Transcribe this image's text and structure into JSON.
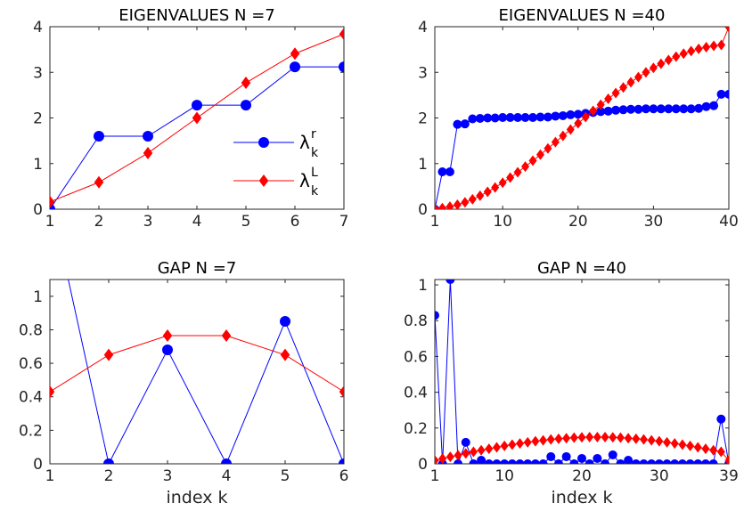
{
  "colors": {
    "lambda_r": "#0000ff",
    "lambda_L": "#ff0000",
    "axis": "#262626"
  },
  "chart_data": [
    {
      "type": "line",
      "title": "EIGENVALUES N =7",
      "xlabel": "",
      "ylabel": "",
      "xlim": [
        1,
        7
      ],
      "ylim": [
        0,
        4
      ],
      "xticks": [
        1,
        2,
        3,
        4,
        5,
        6,
        7
      ],
      "yticks": [
        0,
        1,
        2,
        3,
        4
      ],
      "grid": false,
      "legend": {
        "placement": "center-right",
        "entries": [
          {
            "base": "λ",
            "sup": "r",
            "sub": "k"
          },
          {
            "base": "λ",
            "sup": "L",
            "sub": "k"
          }
        ]
      },
      "series": [
        {
          "name": "λ^r_k",
          "color": "#0000ff",
          "marker": "circle",
          "x": [
            1,
            2,
            3,
            4,
            5,
            6,
            7
          ],
          "y": [
            0.0,
            1.6,
            1.6,
            2.28,
            2.28,
            3.12,
            3.12
          ]
        },
        {
          "name": "λ^L_k",
          "color": "#ff0000",
          "marker": "diamond",
          "x": [
            1,
            2,
            3,
            4,
            5,
            6,
            7
          ],
          "y": [
            0.16,
            0.59,
            1.23,
            2.0,
            2.77,
            3.41,
            3.84
          ]
        }
      ]
    },
    {
      "type": "line",
      "title": "EIGENVALUES N =40",
      "xlabel": "",
      "ylabel": "",
      "xlim": [
        1,
        40
      ],
      "ylim": [
        0,
        4
      ],
      "xticks": [
        1,
        10,
        20,
        30,
        40
      ],
      "yticks": [
        0,
        1,
        2,
        3,
        4
      ],
      "grid": false,
      "series": [
        {
          "name": "λ^r_k",
          "color": "#0000ff",
          "marker": "circle",
          "x": [
            1,
            2,
            3,
            4,
            5,
            6,
            7,
            8,
            9,
            10,
            11,
            12,
            13,
            14,
            15,
            16,
            17,
            18,
            19,
            20,
            21,
            22,
            23,
            24,
            25,
            26,
            27,
            28,
            29,
            30,
            31,
            32,
            33,
            34,
            35,
            36,
            37,
            38,
            39,
            40
          ],
          "y": [
            0.0,
            0.82,
            0.82,
            1.86,
            1.87,
            1.98,
            1.99,
            2.0,
            2.0,
            2.01,
            2.01,
            2.01,
            2.01,
            2.01,
            2.02,
            2.02,
            2.04,
            2.05,
            2.07,
            2.08,
            2.1,
            2.12,
            2.14,
            2.15,
            2.17,
            2.18,
            2.19,
            2.19,
            2.2,
            2.2,
            2.2,
            2.2,
            2.2,
            2.2,
            2.2,
            2.21,
            2.25,
            2.27,
            2.52,
            2.52
          ]
        },
        {
          "name": "λ^L_k",
          "color": "#ff0000",
          "marker": "diamond",
          "x": [
            1,
            2,
            3,
            4,
            5,
            6,
            7,
            8,
            9,
            10,
            11,
            12,
            13,
            14,
            15,
            16,
            17,
            18,
            19,
            20,
            21,
            22,
            23,
            24,
            25,
            26,
            27,
            28,
            29,
            30,
            31,
            32,
            33,
            34,
            35,
            36,
            37,
            38,
            39,
            40
          ],
          "y": [
            0.006,
            0.025,
            0.055,
            0.098,
            0.152,
            0.218,
            0.294,
            0.38,
            0.476,
            0.58,
            0.692,
            0.81,
            0.934,
            1.064,
            1.196,
            1.332,
            1.47,
            1.608,
            1.746,
            1.884,
            2.02,
            2.156,
            2.29,
            2.42,
            2.546,
            2.668,
            2.784,
            2.896,
            3.0,
            3.098,
            3.188,
            3.27,
            3.344,
            3.41,
            3.466,
            3.514,
            3.552,
            3.58,
            3.6,
            3.99
          ]
        }
      ]
    },
    {
      "type": "line",
      "title": "GAP N =7",
      "xlabel": "index k",
      "ylabel": "",
      "xlim": [
        1,
        6
      ],
      "ylim": [
        0,
        1.1
      ],
      "xticks": [
        1,
        2,
        3,
        4,
        5,
        6
      ],
      "yticks": [
        0,
        0.2,
        0.4,
        0.6,
        0.8,
        1
      ],
      "ytick_labels": [
        "0",
        "0.2",
        "0.4",
        "0.6",
        "0.8",
        "1"
      ],
      "grid": false,
      "series": [
        {
          "name": "λ^r_k",
          "color": "#0000ff",
          "marker": "circle",
          "x": [
            1,
            2,
            3,
            4,
            5,
            6
          ],
          "y": [
            1.6,
            0.0,
            0.68,
            0.0,
            0.85,
            0.0
          ],
          "marker_mask": [
            false,
            true,
            true,
            true,
            true,
            true
          ]
        },
        {
          "name": "λ^L_k",
          "color": "#ff0000",
          "marker": "diamond",
          "x": [
            1,
            2,
            3,
            4,
            5,
            6
          ],
          "y": [
            0.43,
            0.65,
            0.765,
            0.765,
            0.65,
            0.43
          ]
        }
      ]
    },
    {
      "type": "line",
      "title": "GAP N =40",
      "xlabel": "index k",
      "ylabel": "",
      "xlim": [
        1,
        39
      ],
      "ylim": [
        0,
        1.03
      ],
      "xticks": [
        1,
        10,
        20,
        30,
        39
      ],
      "yticks": [
        0,
        0.2,
        0.4,
        0.6,
        0.8,
        1
      ],
      "ytick_labels": [
        "0",
        "0.2",
        "0.4",
        "0.6",
        "0.8",
        "1"
      ],
      "grid": false,
      "series": [
        {
          "name": "λ^r_k",
          "color": "#0000ff",
          "marker": "circle",
          "x": [
            1,
            2,
            3,
            4,
            5,
            6,
            7,
            8,
            9,
            10,
            11,
            12,
            13,
            14,
            15,
            16,
            17,
            18,
            19,
            20,
            21,
            22,
            23,
            24,
            25,
            26,
            27,
            28,
            29,
            30,
            31,
            32,
            33,
            34,
            35,
            36,
            37,
            38,
            39
          ],
          "y": [
            0.83,
            0.0,
            1.03,
            0.0,
            0.12,
            0.0,
            0.02,
            0.0,
            0.0,
            0.0,
            0.0,
            0.0,
            0.0,
            0.0,
            0.0,
            0.04,
            0.0,
            0.04,
            0.0,
            0.03,
            0.0,
            0.03,
            0.0,
            0.05,
            0.0,
            0.02,
            0.0,
            0.0,
            0.0,
            0.0,
            0.0,
            0.0,
            0.0,
            0.0,
            0.0,
            0.0,
            0.0,
            0.25,
            0.0
          ]
        },
        {
          "name": "λ^L_k",
          "color": "#ff0000",
          "marker": "diamond",
          "x": [
            1,
            2,
            3,
            4,
            5,
            6,
            7,
            8,
            9,
            10,
            11,
            12,
            13,
            14,
            15,
            16,
            17,
            18,
            19,
            20,
            21,
            22,
            23,
            24,
            25,
            26,
            27,
            28,
            29,
            30,
            31,
            32,
            33,
            34,
            35,
            36,
            37,
            38,
            39
          ],
          "y": [
            0.019,
            0.029,
            0.039,
            0.048,
            0.058,
            0.067,
            0.076,
            0.084,
            0.092,
            0.1,
            0.107,
            0.114,
            0.12,
            0.126,
            0.131,
            0.136,
            0.14,
            0.143,
            0.146,
            0.148,
            0.149,
            0.149,
            0.149,
            0.148,
            0.146,
            0.143,
            0.14,
            0.136,
            0.131,
            0.126,
            0.12,
            0.114,
            0.107,
            0.1,
            0.092,
            0.084,
            0.076,
            0.067,
            0.019
          ]
        }
      ]
    }
  ]
}
